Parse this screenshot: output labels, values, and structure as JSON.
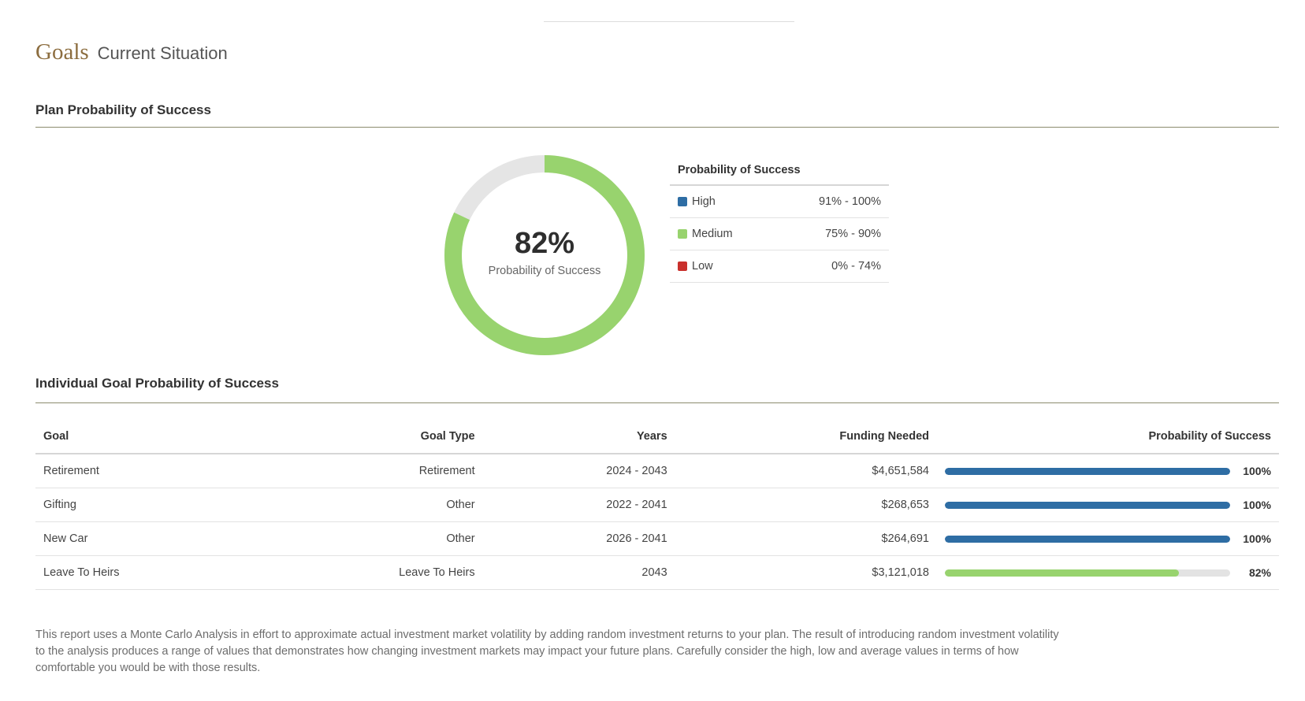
{
  "header": {
    "title": "Goals",
    "subtitle": "Current Situation"
  },
  "plan_section": {
    "title": "Plan Probability of Success"
  },
  "donut": {
    "value_text": "82%",
    "value_fraction": 0.82,
    "label": "Probability of Success",
    "fill_color": "#98d36e",
    "track_color": "#e5e5e5"
  },
  "legend": {
    "title": "Probability of Success",
    "rows": [
      {
        "label": "High",
        "range": "91% - 100%",
        "color": "#2e6da4"
      },
      {
        "label": "Medium",
        "range": "75% - 90%",
        "color": "#98d36e"
      },
      {
        "label": "Low",
        "range": "0% - 74%",
        "color": "#c9302c"
      }
    ]
  },
  "goals_section": {
    "title": "Individual Goal Probability of Success",
    "headers": {
      "goal": "Goal",
      "type": "Goal Type",
      "years": "Years",
      "funding": "Funding Needed",
      "prob": "Probability of Success"
    },
    "rows": [
      {
        "goal": "Retirement",
        "type": "Retirement",
        "years": "2024 - 2043",
        "funding": "$4,651,584",
        "prob_text": "100%",
        "prob": 100,
        "color": "#2e6da4"
      },
      {
        "goal": "Gifting",
        "type": "Other",
        "years": "2022 - 2041",
        "funding": "$268,653",
        "prob_text": "100%",
        "prob": 100,
        "color": "#2e6da4"
      },
      {
        "goal": "New Car",
        "type": "Other",
        "years": "2026 - 2041",
        "funding": "$264,691",
        "prob_text": "100%",
        "prob": 100,
        "color": "#2e6da4"
      },
      {
        "goal": "Leave To Heirs",
        "type": "Leave To Heirs",
        "years": "2043",
        "funding": "$3,121,018",
        "prob_text": "82%",
        "prob": 82,
        "color": "#98d36e"
      }
    ]
  },
  "footnote": "This report uses a Monte Carlo Analysis in effort to approximate actual investment market volatility by adding random investment returns to your plan. The result of introducing random investment volatility to the analysis produces a range of values that demonstrates how changing investment markets may impact your future plans. Carefully consider the high, low and average values in terms of how comfortable you would be with those results."
}
